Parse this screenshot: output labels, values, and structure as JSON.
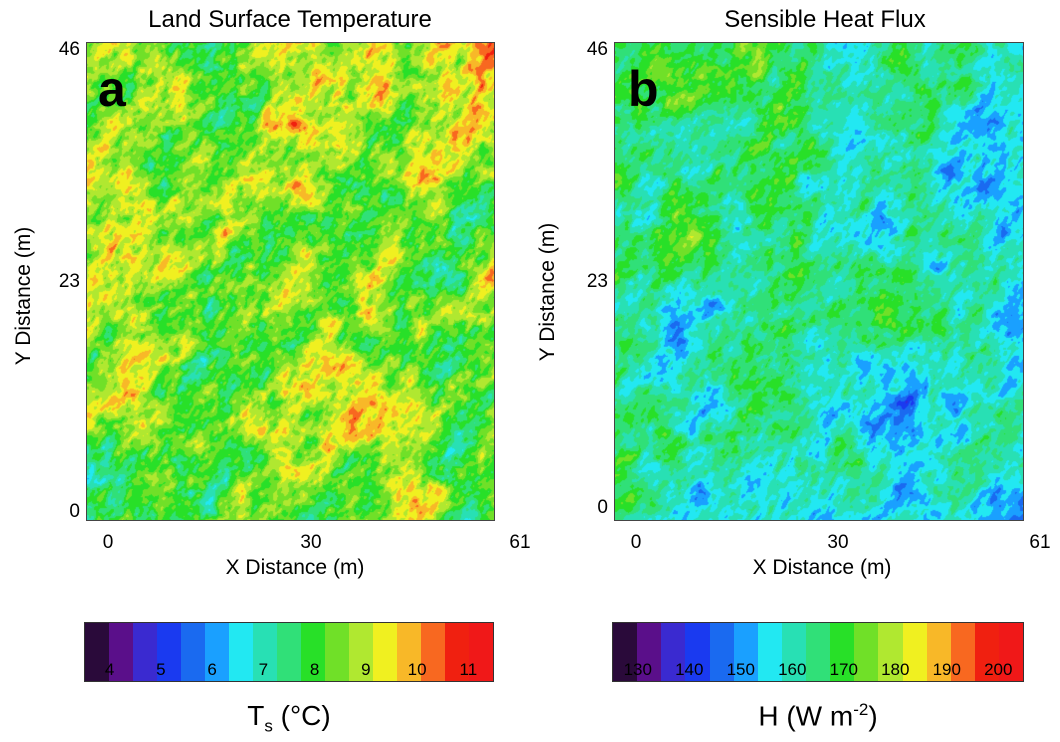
{
  "chart_data": [
    {
      "type": "heatmap",
      "panel": "a",
      "title": "Land Surface Temperature",
      "xlabel": "X Distance (m)",
      "ylabel": "Y Distance (m)",
      "xticks": [
        "0",
        "30",
        "61"
      ],
      "yticks": [
        "0",
        "23",
        "46"
      ],
      "xlim": [
        0,
        61
      ],
      "ylim": [
        0,
        46
      ],
      "colorbar": {
        "label_main": "T",
        "label_sub": "s",
        "label_rest": " (°C)",
        "ticks": [
          "4",
          "5",
          "6",
          "7",
          "8",
          "9",
          "10",
          "11"
        ],
        "range": [
          3.5,
          11.5
        ],
        "colors": [
          "#2a0a3a",
          "#5a0f8a",
          "#3a2ad0",
          "#1a3af0",
          "#1a6af0",
          "#1aa0ff",
          "#22e8f2",
          "#28e0b4",
          "#30e078",
          "#28e028",
          "#70e028",
          "#b0e830",
          "#f0f020",
          "#f8b828",
          "#f86820",
          "#f02010",
          "#f01818"
        ]
      },
      "field": {
        "mean": 8.6,
        "spread": 1.2,
        "trend_x": 0.0,
        "trend_y": 0.6,
        "seed": 11
      }
    },
    {
      "type": "heatmap",
      "panel": "b",
      "title": "Sensible Heat Flux",
      "xlabel": "X Distance (m)",
      "ylabel": "Y Distance (m)",
      "xticks": [
        "0",
        "30",
        "61"
      ],
      "yticks": [
        "0",
        "23",
        "46"
      ],
      "xlim": [
        0,
        61
      ],
      "ylim": [
        0,
        46
      ],
      "colorbar": {
        "label_main": "H (W m",
        "label_sup": "-2",
        "label_rest": ")",
        "ticks": [
          "130",
          "140",
          "150",
          "160",
          "170",
          "180",
          "190",
          "200"
        ],
        "range": [
          125,
          205
        ],
        "colors": [
          "#2a0a3a",
          "#5a0f8a",
          "#3a2ad0",
          "#1a3af0",
          "#1a6af0",
          "#1aa0ff",
          "#22e8f2",
          "#28e0b4",
          "#30e078",
          "#28e028",
          "#70e028",
          "#b0e830",
          "#f0f020",
          "#f8b828",
          "#f86820",
          "#f02010",
          "#f01818"
        ]
      },
      "field": {
        "mean": 160,
        "spread": 9,
        "trend_x": -8,
        "trend_y": 9,
        "seed": 29
      }
    }
  ]
}
